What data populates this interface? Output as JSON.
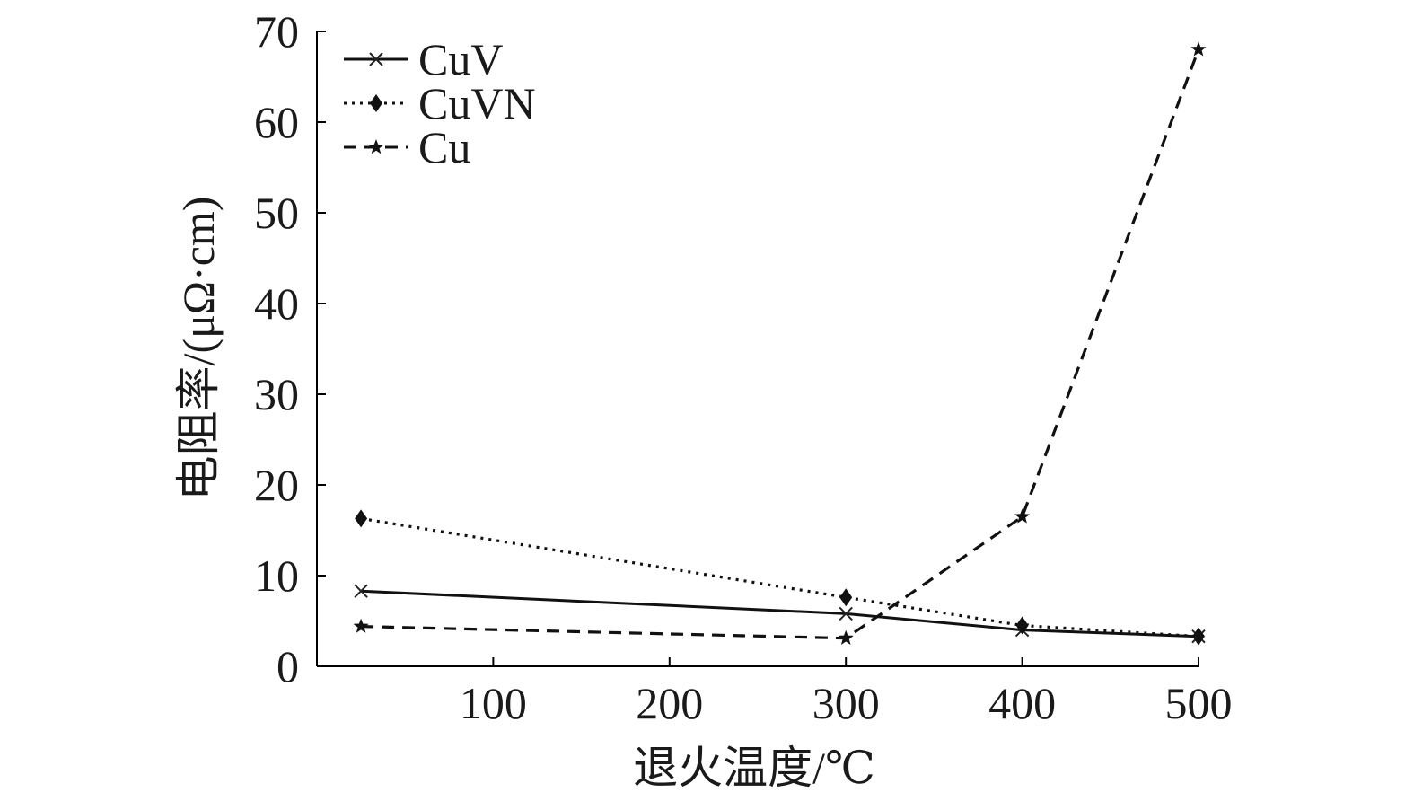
{
  "chart_data": {
    "type": "line",
    "xlabel": "退火温度/℃",
    "ylabel": "电阻率/(μΩ·cm)",
    "xlim": [
      0,
      500
    ],
    "ylim": [
      0,
      70
    ],
    "xticks": [
      100,
      200,
      300,
      400,
      500
    ],
    "yticks": [
      0,
      10,
      20,
      30,
      40,
      50,
      60,
      70
    ],
    "grid": false,
    "legend_position": "top-left",
    "series": [
      {
        "name": "CuV",
        "line_style": "solid",
        "marker": "x",
        "x": [
          25,
          300,
          400,
          500
        ],
        "y": [
          8.3,
          5.8,
          4.0,
          3.3
        ]
      },
      {
        "name": "CuVN",
        "line_style": "dotted",
        "marker": "diamond",
        "x": [
          25,
          300,
          400,
          500
        ],
        "y": [
          16.3,
          7.6,
          4.5,
          3.3
        ]
      },
      {
        "name": "Cu",
        "line_style": "dashed",
        "marker": "star",
        "x": [
          25,
          300,
          400,
          500
        ],
        "y": [
          4.4,
          3.1,
          16.5,
          68.0
        ]
      }
    ]
  }
}
